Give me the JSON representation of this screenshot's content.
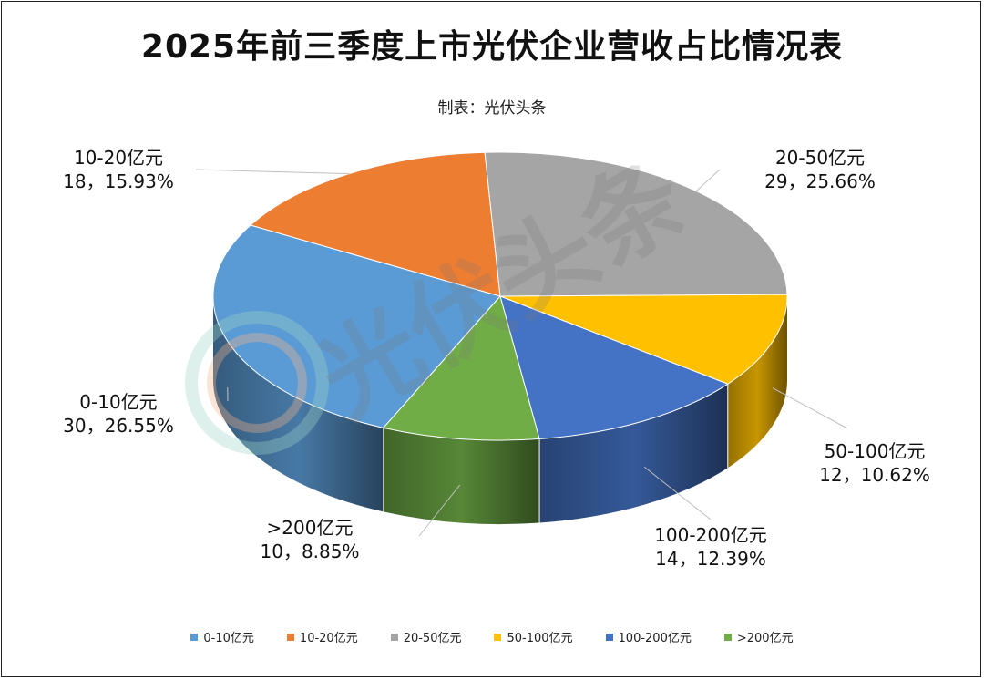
{
  "chart_data": {
    "type": "pie",
    "title": "2025年前三季度上市光伏企业营收占比情况表",
    "subtitle": "制表：光伏头条",
    "watermark": "光伏头条",
    "categories": [
      "0-10亿元",
      "10-20亿元",
      "20-50亿元",
      "50-100亿元",
      "100-200亿元",
      ">200亿元"
    ],
    "values": [
      30,
      18,
      29,
      12,
      14,
      10
    ],
    "percents": [
      "26.55%",
      "15.93%",
      "25.66%",
      "10.62%",
      "12.39%",
      "8.85%"
    ],
    "data_labels": [
      "30，26.55%",
      "18，15.93%",
      "29，25.66%",
      "12，10.62%",
      "14，12.39%",
      "10，8.85%"
    ],
    "colors": [
      "#5b9bd5",
      "#ed7d31",
      "#a5a5a5",
      "#ffc000",
      "#4472c4",
      "#70ad47"
    ],
    "legend_position": "bottom"
  }
}
